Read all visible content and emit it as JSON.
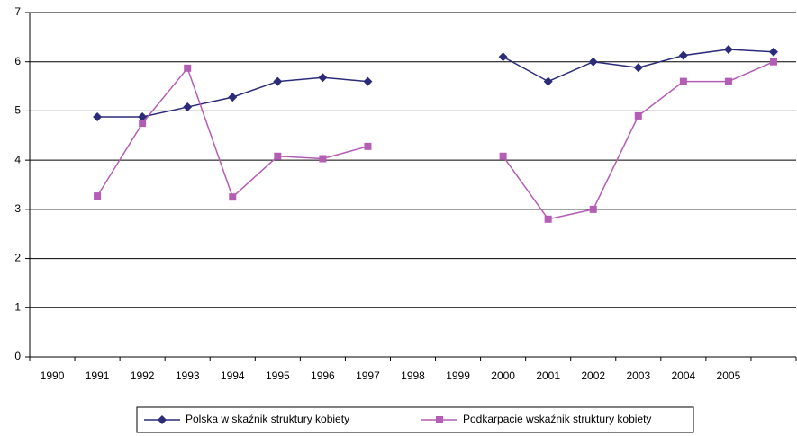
{
  "chart_data": {
    "type": "line",
    "categories": [
      "1990",
      "1991",
      "1992",
      "1993",
      "1994",
      "1995",
      "1996",
      "1997",
      "1998",
      "1999",
      "2000",
      "2001",
      "2002",
      "2003",
      "2004",
      "2005",
      null
    ],
    "series": [
      {
        "name": "Polska w skaźnik struktury kobiety",
        "color": "#2b2b7a",
        "marker": "diamond",
        "values": [
          null,
          4.88,
          4.88,
          5.08,
          5.28,
          5.6,
          5.68,
          5.6,
          null,
          null,
          6.1,
          5.6,
          6.0,
          5.88,
          6.13,
          6.25,
          6.2
        ]
      },
      {
        "name": "Podkarpacie wskaźnik struktury kobiety",
        "color": "#b45db4",
        "marker": "square",
        "values": [
          null,
          3.27,
          4.75,
          5.87,
          3.25,
          4.08,
          4.03,
          4.28,
          null,
          null,
          4.08,
          2.8,
          3.0,
          4.9,
          5.6,
          5.6,
          6.0
        ]
      }
    ],
    "ylim": [
      0,
      7
    ],
    "yticks": [
      0,
      1,
      2,
      3,
      4,
      5,
      6,
      7
    ],
    "grid": true,
    "legend": "bottom"
  }
}
